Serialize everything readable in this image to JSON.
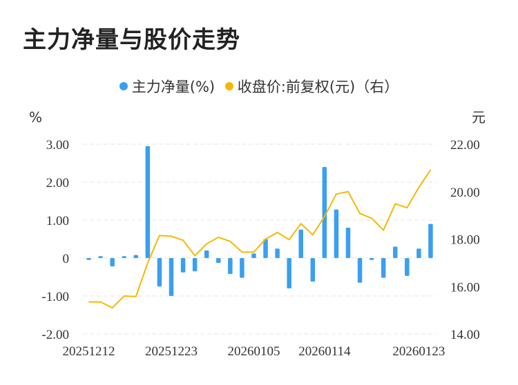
{
  "chart_data": {
    "type": "bar+line",
    "title": "主力净量与股价走势",
    "legend": [
      {
        "name": "主力净量(%)",
        "color": "#3a9ff0"
      },
      {
        "name": "收盘价:前复权(元)（右）",
        "color": "#f5b800"
      }
    ],
    "y_left_unit": "%",
    "y_right_unit": "元",
    "y_left_ticks": [
      "3.00",
      "2.00",
      "1.00",
      "0",
      "-1.00",
      "-2.00"
    ],
    "y_right_ticks": [
      "22.00",
      "20.00",
      "18.00",
      "16.00",
      "14.00"
    ],
    "y_left_range": [
      -2,
      3
    ],
    "y_right_range": [
      14,
      22
    ],
    "x_tick_labels": [
      "20251212",
      "20251223",
      "20260105",
      "20260114",
      "20260123"
    ],
    "x_tick_indices": [
      0,
      7,
      14,
      20,
      28
    ],
    "grid": "horizontal dashed",
    "series": [
      {
        "name": "主力净量(%)",
        "type": "bar",
        "values": [
          -0.05,
          0.05,
          -0.22,
          0.05,
          0.08,
          2.95,
          -0.75,
          -1.0,
          -0.38,
          -0.35,
          0.2,
          -0.13,
          -0.42,
          -0.52,
          0.12,
          0.5,
          0.25,
          -0.8,
          0.75,
          -0.62,
          2.4,
          1.28,
          0.8,
          -0.65,
          -0.05,
          -0.52,
          0.3,
          -0.47,
          0.25,
          0.9
        ]
      },
      {
        "name": "收盘价:前复权(元)（右）",
        "type": "line",
        "values": [
          15.35,
          15.35,
          15.1,
          15.6,
          15.58,
          17.0,
          18.15,
          18.12,
          17.95,
          17.3,
          17.8,
          18.08,
          17.9,
          17.45,
          17.45,
          18.0,
          18.28,
          17.98,
          18.65,
          18.18,
          18.95,
          19.9,
          20.0,
          19.08,
          18.88,
          18.38,
          19.48,
          19.32,
          20.18,
          20.92
        ]
      }
    ]
  }
}
